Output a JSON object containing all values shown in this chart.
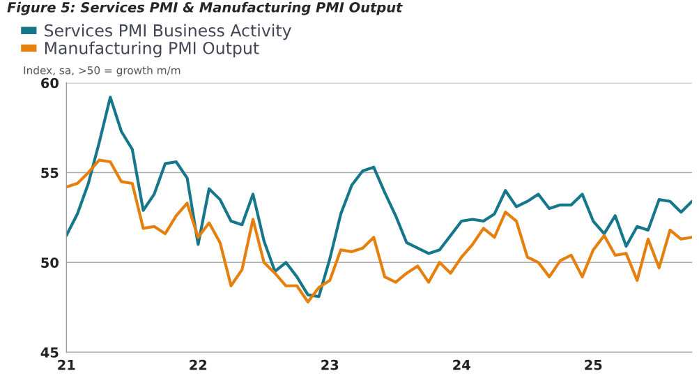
{
  "chart_data": {
    "type": "line",
    "title": "Figure 5: Services PMI & Manufacturing PMI Output",
    "ylabel": "Index, sa, >50 = growth m/m",
    "x": [
      "2021-01",
      "2021-02",
      "2021-03",
      "2021-04",
      "2021-05",
      "2021-06",
      "2021-07",
      "2021-08",
      "2021-09",
      "2021-10",
      "2021-11",
      "2021-12",
      "2022-01",
      "2022-02",
      "2022-03",
      "2022-04",
      "2022-05",
      "2022-06",
      "2022-07",
      "2022-08",
      "2022-09",
      "2022-10",
      "2022-11",
      "2022-12",
      "2023-01",
      "2023-02",
      "2023-03",
      "2023-04",
      "2023-05",
      "2023-06",
      "2023-07",
      "2023-08",
      "2023-09",
      "2023-10",
      "2023-11",
      "2023-12",
      "2024-01",
      "2024-02",
      "2024-03",
      "2024-04",
      "2024-05",
      "2024-06",
      "2024-07",
      "2024-08",
      "2024-09",
      "2024-10",
      "2024-11",
      "2024-12",
      "2025-01",
      "2025-02",
      "2025-03",
      "2025-04",
      "2025-05",
      "2025-06",
      "2025-07",
      "2025-08",
      "2025-09",
      "2025-10"
    ],
    "series": [
      {
        "name": "Services PMI Business Activity",
        "color": "#17778a",
        "values": [
          51.5,
          52.7,
          54.4,
          56.7,
          59.2,
          57.3,
          56.3,
          52.9,
          53.8,
          55.5,
          55.6,
          54.7,
          51.0,
          54.1,
          53.5,
          52.3,
          52.1,
          53.8,
          51.2,
          49.5,
          50.0,
          49.2,
          48.2,
          48.1,
          50.2,
          52.7,
          54.3,
          55.1,
          55.3,
          53.9,
          52.6,
          51.1,
          50.8,
          50.5,
          50.7,
          51.5,
          52.3,
          52.4,
          52.3,
          52.7,
          54.0,
          53.1,
          53.4,
          53.8,
          53.0,
          53.2,
          53.2,
          53.8,
          52.3,
          51.6,
          52.6,
          50.9,
          52.0,
          51.8,
          53.5,
          53.4,
          52.8,
          53.4
        ]
      },
      {
        "name": "Manufacturing PMI Output",
        "color": "#e5800f",
        "values": [
          54.2,
          54.4,
          55.0,
          55.7,
          55.6,
          54.5,
          54.4,
          51.9,
          52.0,
          51.6,
          52.6,
          53.3,
          51.4,
          52.2,
          51.1,
          48.7,
          49.6,
          52.4,
          50.0,
          49.4,
          48.7,
          48.7,
          47.8,
          48.6,
          49.0,
          50.7,
          50.6,
          50.8,
          51.4,
          49.2,
          48.9,
          49.4,
          49.8,
          48.9,
          50.0,
          49.4,
          50.3,
          51.0,
          51.9,
          51.4,
          52.8,
          52.3,
          50.3,
          50.0,
          49.2,
          50.1,
          50.4,
          49.2,
          50.7,
          51.5,
          50.4,
          50.5,
          49.0,
          51.3,
          49.7,
          51.8,
          51.3,
          51.4
        ]
      }
    ],
    "xlim": [
      "2021-01",
      "2025-10"
    ],
    "xticks": [
      {
        "value": "2021-01",
        "label": "21"
      },
      {
        "value": "2022-01",
        "label": "22"
      },
      {
        "value": "2023-01",
        "label": "23"
      },
      {
        "value": "2024-01",
        "label": "24"
      },
      {
        "value": "2025-01",
        "label": "25"
      }
    ],
    "ylim": [
      45,
      60
    ],
    "yticks": [
      45,
      50,
      55,
      60
    ],
    "grid": "y",
    "legend": "top left",
    "line_style": "solid",
    "marker": "none"
  }
}
